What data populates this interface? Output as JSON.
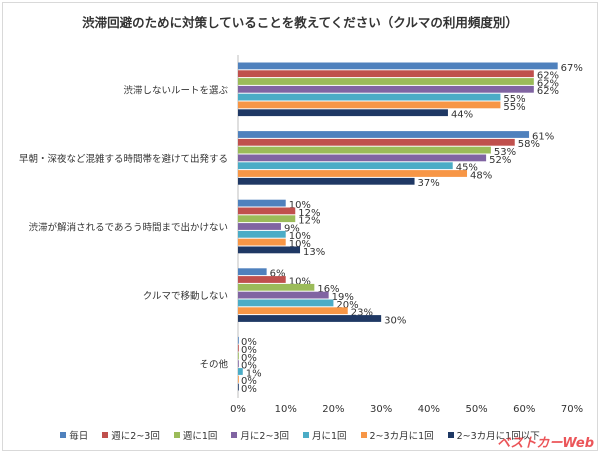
{
  "chart_data": {
    "type": "bar",
    "orientation": "horizontal",
    "title": "渋滞回避のために対策していることを教えてください（クルマの利用頻度別）",
    "categories": [
      "渋滞しないルートを選ぶ",
      "早朝・深夜など混雑する時間帯を避けて出発する",
      "渋滞が解消されるであろう時間まで出かけない",
      "クルマで移動しない",
      "その他"
    ],
    "series": [
      {
        "name": "毎日",
        "color": "#4f81bd",
        "values": [
          67,
          61,
          10,
          6,
          0
        ]
      },
      {
        "name": "週に2~3回",
        "color": "#c0504d",
        "values": [
          62,
          58,
          12,
          10,
          0
        ]
      },
      {
        "name": "週に1回",
        "color": "#9bbb59",
        "values": [
          62,
          53,
          12,
          16,
          0
        ]
      },
      {
        "name": "月に2~3回",
        "color": "#8064a2",
        "values": [
          62,
          52,
          9,
          19,
          0
        ]
      },
      {
        "name": "月に1回",
        "color": "#4bacc6",
        "values": [
          55,
          45,
          10,
          20,
          1
        ]
      },
      {
        "name": "2~3カ月に1回",
        "color": "#f79646",
        "values": [
          55,
          48,
          10,
          23,
          0
        ]
      },
      {
        "name": "2~3カ月に1回以下",
        "color": "#1f3864",
        "values": [
          44,
          37,
          13,
          30,
          0
        ]
      }
    ],
    "xlim": [
      0,
      70
    ],
    "xticks": [
      "0%",
      "10%",
      "20%",
      "30%",
      "40%",
      "50%",
      "60%",
      "70%"
    ],
    "grid": false,
    "legend": "bottom"
  },
  "logo": "ベストカーWeb"
}
